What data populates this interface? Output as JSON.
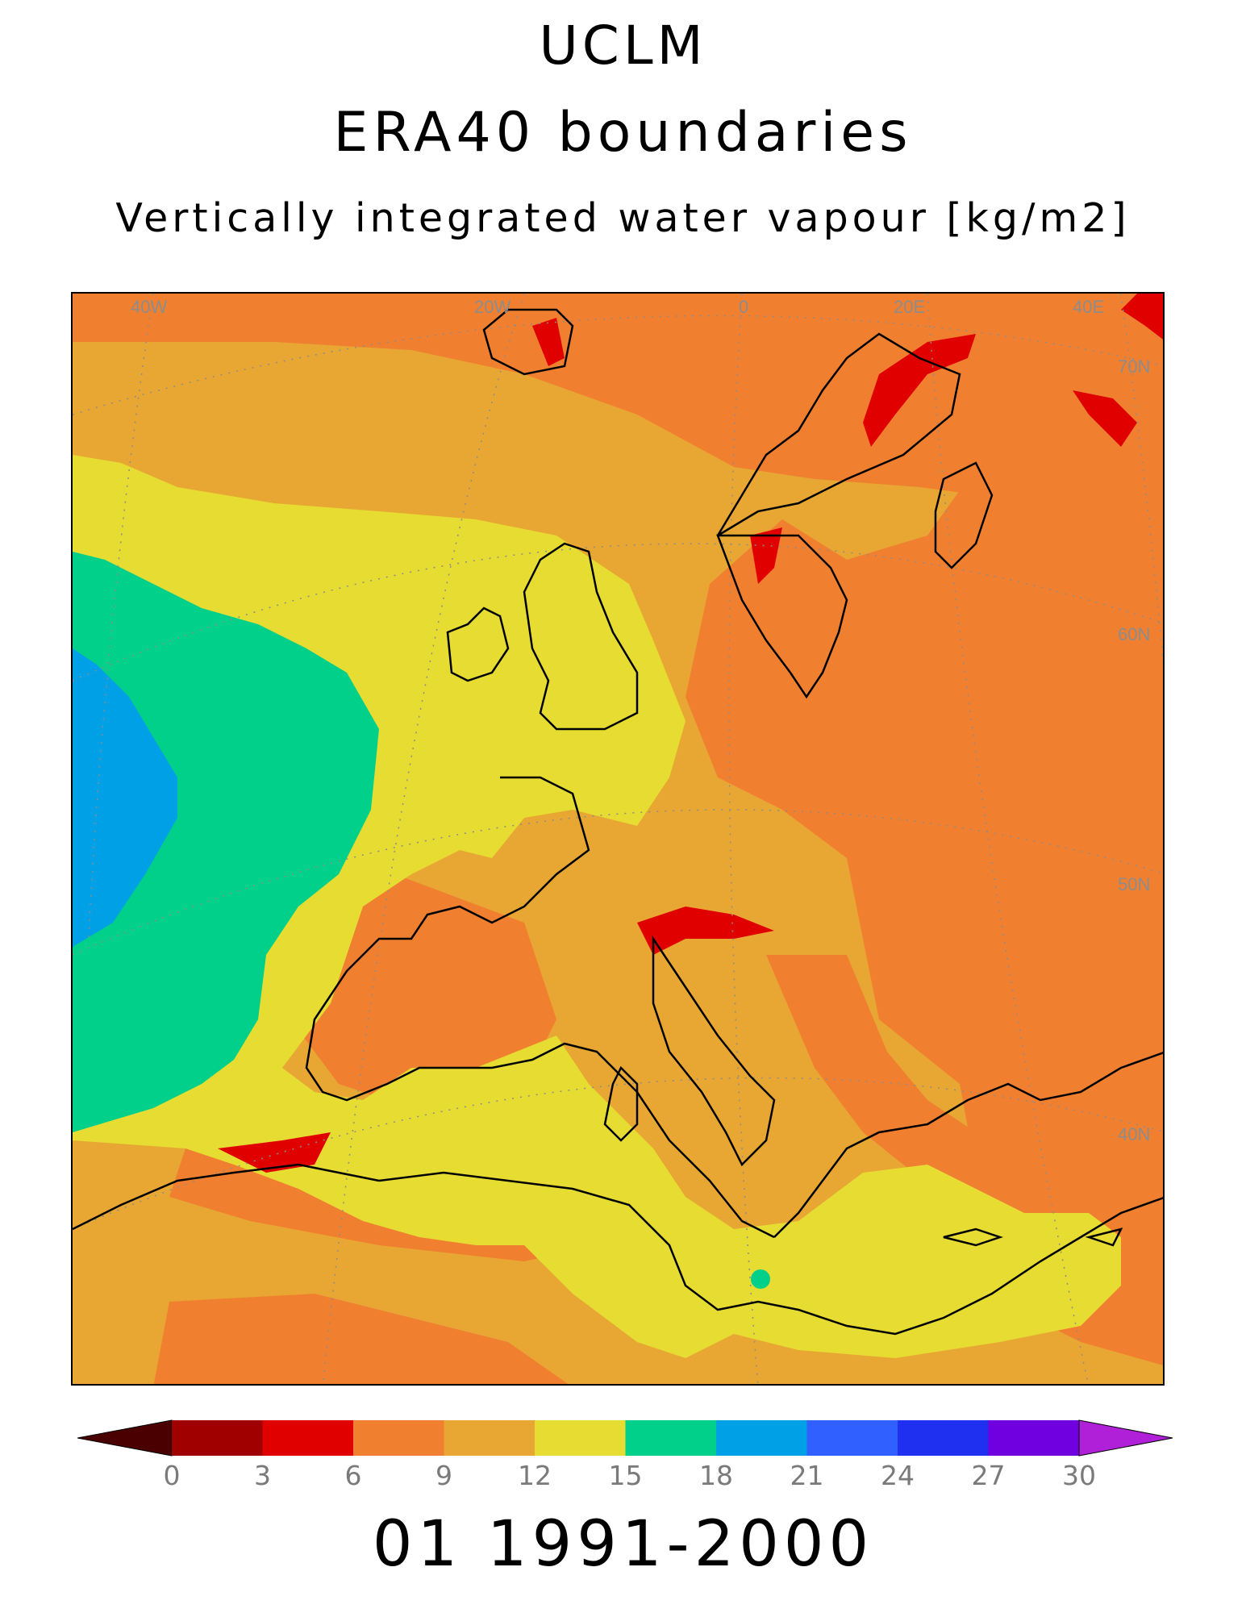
{
  "titles": {
    "institution": "UCLM",
    "experiment": "ERA40 boundaries",
    "variable": "Vertically integrated water vapour [kg/m2]"
  },
  "period_label": "01 1991-2000",
  "map": {
    "region": "Europe / North Atlantic",
    "projection": "rotated pole (curved graticule)",
    "longitude_labels": [
      "40W",
      "20W",
      "0",
      "20E",
      "40E"
    ],
    "latitude_labels": [
      "70N",
      "60N",
      "50N",
      "40N"
    ],
    "coastlines": "black outline",
    "graticule": "grey dotted"
  },
  "colorbar": {
    "unit": "kg/m2",
    "ticks": [
      "0",
      "3",
      "6",
      "9",
      "12",
      "15",
      "18",
      "21",
      "24",
      "27",
      "30"
    ],
    "below_min_color": "#4a0000",
    "above_max_color": "#b020d8",
    "classes": [
      {
        "range": "0-3",
        "color": "#a00000"
      },
      {
        "range": "3-6",
        "color": "#e00000"
      },
      {
        "range": "6-9",
        "color": "#f08030"
      },
      {
        "range": "9-12",
        "color": "#e8a732"
      },
      {
        "range": "12-15",
        "color": "#e6dc32"
      },
      {
        "range": "15-18",
        "color": "#00d08a"
      },
      {
        "range": "18-21",
        "color": "#00a0e6"
      },
      {
        "range": "21-24",
        "color": "#3060ff"
      },
      {
        "range": "24-27",
        "color": "#2030f0"
      },
      {
        "range": "27-30",
        "color": "#7000e0"
      }
    ]
  }
}
